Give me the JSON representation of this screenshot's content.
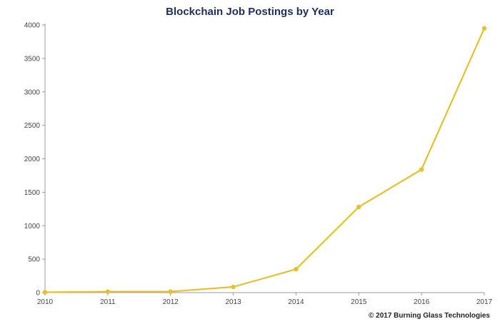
{
  "chart_data": {
    "type": "line",
    "title": "Blockchain Job Postings by Year",
    "xlabel": "",
    "ylabel": "",
    "x": [
      "2010",
      "2011",
      "2012",
      "2013",
      "2014",
      "2015",
      "2016",
      "2017"
    ],
    "series": [
      {
        "values": [
          5,
          15,
          15,
          85,
          350,
          1280,
          1840,
          3950
        ]
      }
    ],
    "ylim": [
      0,
      4000
    ],
    "yticks": [
      "0",
      "500",
      "1000",
      "1500",
      "2000",
      "2500",
      "3000",
      "3500",
      "4000"
    ],
    "grid": false,
    "legend": "none",
    "colors": {
      "line": "#e3c22e",
      "marker": "#e3c22e",
      "axis": "#999999",
      "title": "#1f2d5a"
    }
  },
  "footer": {
    "copyright": "© 2017 Burning Glass Technologies"
  }
}
